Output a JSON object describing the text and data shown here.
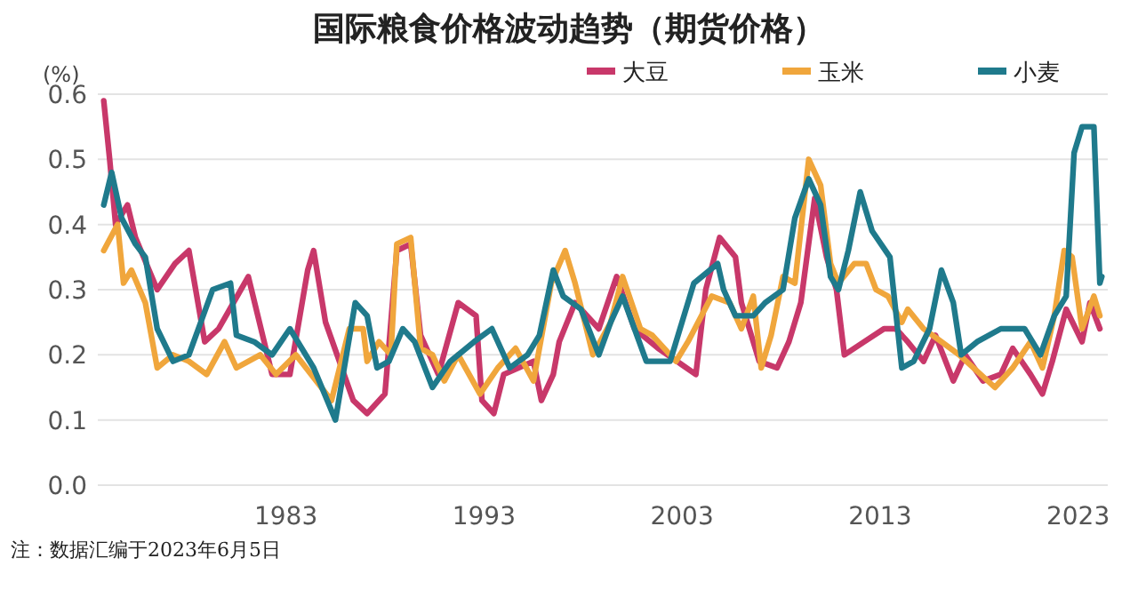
{
  "chart_data": {
    "type": "line",
    "title": "国际粮食价格波动趋势（期货价格）",
    "ylabel": "(%)",
    "annotations": [
      "注：数据汇编于2023年6月5日"
    ],
    "xlim": [
      1973.5,
      2024.5
    ],
    "xticks": [
      1983,
      1993,
      2003,
      2013,
      2023
    ],
    "ylim": [
      0,
      0.6
    ],
    "yticks": [
      {
        "value": 0,
        "label": "0.0"
      },
      {
        "value": 0.1,
        "label": "0.1"
      },
      {
        "value": 0.2,
        "label": "0.2"
      },
      {
        "value": 0.3,
        "label": "0.3"
      },
      {
        "value": 0.4,
        "label": "0.4"
      },
      {
        "value": 0.5,
        "label": "0.5"
      },
      {
        "value": 0.6,
        "label": "0.6"
      }
    ],
    "grid": "y",
    "legend": "top right",
    "marker": "none",
    "line_style": "solid",
    "series": [
      {
        "name": "大豆",
        "color": "#c8386a",
        "x": [
          1973.8,
          1974.1,
          1974.4,
          1975.0,
          1975.4,
          1976.5,
          1977.4,
          1978.1,
          1978.9,
          1979.6,
          1981.1,
          1982.3,
          1983.2,
          1984.1,
          1984.4,
          1985.0,
          1986.4,
          1987.1,
          1988.0,
          1988.6,
          1989.3,
          1989.8,
          1990.7,
          1991.7,
          1992.6,
          1992.9,
          1993.5,
          1994.0,
          1995.5,
          1995.9,
          1996.5,
          1996.8,
          1997.6,
          1998.8,
          1999.7,
          2000.6,
          2001.8,
          2003.7,
          2004.2,
          2004.9,
          2005.7,
          2006.0,
          2006.9,
          2007.8,
          2008.4,
          2009.0,
          2009.7,
          2010.3,
          2010.8,
          2011.2,
          2012.2,
          2013.2,
          2013.8,
          2014.4,
          2015.2,
          2015.8,
          2016.7,
          2017.3,
          2018.2,
          2019.1,
          2019.7,
          2020.6,
          2021.2,
          2021.7,
          2022.4,
          2023.2,
          2023.6,
          2024.1
        ],
        "values": [
          0.59,
          0.5,
          0.4,
          0.43,
          0.38,
          0.3,
          0.34,
          0.36,
          0.22,
          0.24,
          0.32,
          0.17,
          0.17,
          0.33,
          0.36,
          0.25,
          0.13,
          0.11,
          0.14,
          0.36,
          0.37,
          0.23,
          0.17,
          0.28,
          0.26,
          0.13,
          0.11,
          0.17,
          0.19,
          0.13,
          0.17,
          0.22,
          0.28,
          0.24,
          0.32,
          0.24,
          0.21,
          0.17,
          0.3,
          0.38,
          0.35,
          0.28,
          0.19,
          0.18,
          0.22,
          0.28,
          0.44,
          0.35,
          0.3,
          0.2,
          0.22,
          0.24,
          0.24,
          0.22,
          0.19,
          0.23,
          0.16,
          0.2,
          0.16,
          0.17,
          0.21,
          0.17,
          0.14,
          0.19,
          0.27,
          0.22,
          0.28,
          0.24
        ]
      },
      {
        "name": "玉米",
        "color": "#f0a63c",
        "x": [
          1973.8,
          1974.5,
          1974.8,
          1975.2,
          1975.9,
          1976.5,
          1977.3,
          1978.1,
          1979.0,
          1979.9,
          1980.5,
          1981.7,
          1982.5,
          1983.5,
          1985.3,
          1986.2,
          1986.9,
          1987.1,
          1987.7,
          1988.3,
          1988.6,
          1989.3,
          1989.8,
          1990.4,
          1991.0,
          1991.7,
          1992.8,
          1993.7,
          1994.6,
          1995.5,
          1996.4,
          1997.1,
          1997.6,
          1998.5,
          1999.4,
          2000.0,
          2000.9,
          2001.5,
          2002.7,
          2003.3,
          2004.5,
          2005.4,
          2006.0,
          2006.6,
          2007.0,
          2007.5,
          2008.1,
          2008.7,
          2009.4,
          2010.0,
          2010.5,
          2010.9,
          2011.7,
          2012.3,
          2012.8,
          2013.4,
          2014.1,
          2014.4,
          2015.2,
          2016.1,
          2017.0,
          2018.8,
          2019.7,
          2020.6,
          2021.2,
          2021.8,
          2022.3,
          2022.7,
          2023.2,
          2023.8,
          2024.1
        ],
        "values": [
          0.36,
          0.4,
          0.31,
          0.33,
          0.28,
          0.18,
          0.2,
          0.19,
          0.17,
          0.22,
          0.18,
          0.2,
          0.17,
          0.2,
          0.13,
          0.24,
          0.24,
          0.19,
          0.22,
          0.2,
          0.37,
          0.38,
          0.21,
          0.2,
          0.16,
          0.2,
          0.14,
          0.18,
          0.21,
          0.16,
          0.31,
          0.36,
          0.31,
          0.2,
          0.25,
          0.32,
          0.24,
          0.23,
          0.19,
          0.22,
          0.29,
          0.28,
          0.24,
          0.29,
          0.18,
          0.23,
          0.32,
          0.31,
          0.5,
          0.46,
          0.34,
          0.31,
          0.34,
          0.34,
          0.3,
          0.29,
          0.25,
          0.27,
          0.24,
          0.22,
          0.2,
          0.15,
          0.18,
          0.22,
          0.18,
          0.26,
          0.36,
          0.35,
          0.24,
          0.29,
          0.26
        ]
      },
      {
        "name": "小麦",
        "color": "#1f7a8c",
        "x": [
          1973.8,
          1974.2,
          1974.7,
          1975.4,
          1975.9,
          1976.5,
          1977.3,
          1978.1,
          1979.3,
          1980.2,
          1980.5,
          1981.4,
          1982.3,
          1983.2,
          1984.4,
          1985.5,
          1986.5,
          1987.1,
          1987.6,
          1988.2,
          1988.9,
          1989.5,
          1990.4,
          1991.3,
          1992.5,
          1993.4,
          1994.3,
          1995.2,
          1995.8,
          1996.5,
          1997.0,
          1997.9,
          1998.8,
          1999.4,
          2000.0,
          2001.2,
          2002.4,
          2003.6,
          2004.8,
          2005.1,
          2005.7,
          2006.6,
          2007.2,
          2008.1,
          2008.7,
          2009.4,
          2010.0,
          2010.5,
          2010.9,
          2011.4,
          2012.0,
          2012.6,
          2013.5,
          2014.1,
          2014.7,
          2015.5,
          2016.1,
          2016.7,
          2017.1,
          2017.9,
          2019.1,
          2020.3,
          2021.1,
          2021.8,
          2022.4,
          2022.8,
          2023.2,
          2023.8,
          2024.1,
          2024.2
        ],
        "values": [
          0.43,
          0.48,
          0.41,
          0.37,
          0.35,
          0.24,
          0.19,
          0.2,
          0.3,
          0.31,
          0.23,
          0.22,
          0.2,
          0.24,
          0.18,
          0.1,
          0.28,
          0.26,
          0.18,
          0.19,
          0.24,
          0.22,
          0.15,
          0.19,
          0.22,
          0.24,
          0.18,
          0.2,
          0.23,
          0.33,
          0.29,
          0.27,
          0.2,
          0.25,
          0.29,
          0.19,
          0.19,
          0.31,
          0.34,
          0.3,
          0.26,
          0.26,
          0.28,
          0.3,
          0.41,
          0.47,
          0.43,
          0.32,
          0.3,
          0.36,
          0.45,
          0.39,
          0.35,
          0.18,
          0.19,
          0.24,
          0.33,
          0.28,
          0.2,
          0.22,
          0.24,
          0.24,
          0.2,
          0.26,
          0.29,
          0.51,
          0.55,
          0.55,
          0.31,
          0.32
        ]
      }
    ]
  }
}
